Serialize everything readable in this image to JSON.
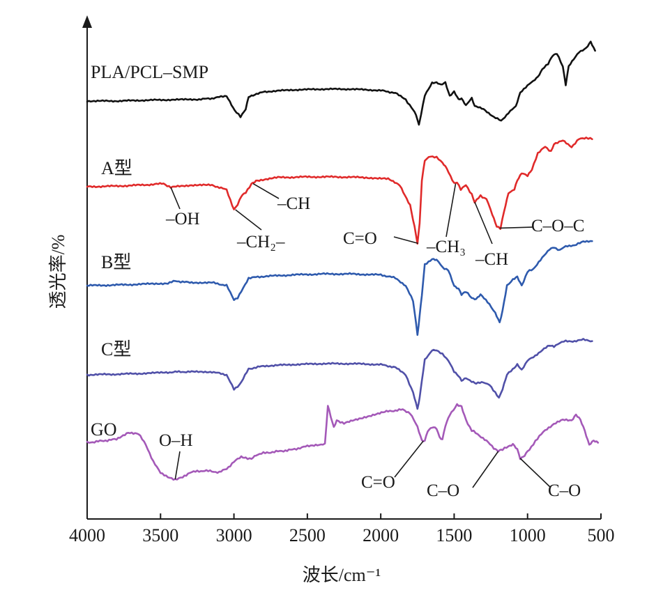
{
  "chart_data": {
    "type": "line",
    "xlabel": "波长/cm⁻¹",
    "ylabel": "透光率/%",
    "xlim": [
      4000,
      500
    ],
    "xticks": [
      4000,
      3500,
      3000,
      2500,
      2000,
      1500,
      1000,
      500
    ],
    "grid": false,
    "legend": "none",
    "series": [
      {
        "name": "PLA/PCL–SMP",
        "color": "#111111",
        "offset": 4,
        "points": [
          [
            4000,
            0
          ],
          [
            3800,
            0
          ],
          [
            3600,
            0.03
          ],
          [
            3400,
            0.05
          ],
          [
            3250,
            0.06
          ],
          [
            3150,
            0.1
          ],
          [
            3050,
            0.2
          ],
          [
            2995,
            -0.35
          ],
          [
            2955,
            -0.6
          ],
          [
            2920,
            -0.3
          ],
          [
            2900,
            0.15
          ],
          [
            2870,
            0.2
          ],
          [
            2800,
            0.35
          ],
          [
            2600,
            0.42
          ],
          [
            2400,
            0.45
          ],
          [
            2200,
            0.45
          ],
          [
            2000,
            0.4
          ],
          [
            1900,
            0.3
          ],
          [
            1830,
            0.05
          ],
          [
            1790,
            -0.25
          ],
          [
            1760,
            -0.5
          ],
          [
            1740,
            -0.9
          ],
          [
            1725,
            -0.5
          ],
          [
            1700,
            0.2
          ],
          [
            1650,
            0.7
          ],
          [
            1620,
            0.7
          ],
          [
            1590,
            0.6
          ],
          [
            1560,
            0.7
          ],
          [
            1530,
            0.2
          ],
          [
            1500,
            0.35
          ],
          [
            1470,
            0.05
          ],
          [
            1450,
            0.1
          ],
          [
            1420,
            -0.15
          ],
          [
            1380,
            0.1
          ],
          [
            1360,
            -0.2
          ],
          [
            1300,
            -0.3
          ],
          [
            1230,
            -0.6
          ],
          [
            1180,
            -0.75
          ],
          [
            1130,
            -0.45
          ],
          [
            1080,
            -0.2
          ],
          [
            1050,
            0.3
          ],
          [
            1000,
            0.6
          ],
          [
            960,
            0.75
          ],
          [
            930,
            0.9
          ],
          [
            900,
            1.2
          ],
          [
            860,
            1.4
          ],
          [
            830,
            1.7
          ],
          [
            800,
            1.8
          ],
          [
            760,
            1.3
          ],
          [
            740,
            0.6
          ],
          [
            720,
            1.3
          ],
          [
            650,
            1.85
          ],
          [
            600,
            2.0
          ],
          [
            570,
            2.25
          ],
          [
            540,
            1.9
          ]
        ]
      },
      {
        "name": "A型",
        "color": "#e02a2a",
        "offset": 3,
        "points": [
          [
            4000,
            0
          ],
          [
            3800,
            0.02
          ],
          [
            3600,
            0.06
          ],
          [
            3480,
            0.1
          ],
          [
            3430,
            -0.02
          ],
          [
            3300,
            0.05
          ],
          [
            3150,
            0.05
          ],
          [
            3050,
            -0.1
          ],
          [
            3000,
            -0.75
          ],
          [
            2975,
            -0.6
          ],
          [
            2950,
            -0.3
          ],
          [
            2920,
            -0.2
          ],
          [
            2880,
            0.1
          ],
          [
            2850,
            0.2
          ],
          [
            2700,
            0.3
          ],
          [
            2500,
            0.32
          ],
          [
            2300,
            0.32
          ],
          [
            2100,
            0.3
          ],
          [
            1950,
            0.25
          ],
          [
            1870,
            0.05
          ],
          [
            1800,
            -0.6
          ],
          [
            1770,
            -1.3
          ],
          [
            1750,
            -1.85
          ],
          [
            1735,
            -1.2
          ],
          [
            1720,
            0.2
          ],
          [
            1700,
            0.85
          ],
          [
            1660,
            1.0
          ],
          [
            1620,
            0.95
          ],
          [
            1580,
            0.8
          ],
          [
            1550,
            0.6
          ],
          [
            1500,
            0.1
          ],
          [
            1480,
            0.15
          ],
          [
            1455,
            -0.1
          ],
          [
            1420,
            0.05
          ],
          [
            1380,
            -0.25
          ],
          [
            1360,
            -0.5
          ],
          [
            1320,
            -0.3
          ],
          [
            1280,
            -0.4
          ],
          [
            1240,
            -0.9
          ],
          [
            1210,
            -1.3
          ],
          [
            1185,
            -1.35
          ],
          [
            1160,
            -0.8
          ],
          [
            1130,
            -0.2
          ],
          [
            1090,
            -0.1
          ],
          [
            1070,
            0.2
          ],
          [
            1040,
            0.45
          ],
          [
            1000,
            0.35
          ],
          [
            970,
            0.55
          ],
          [
            930,
            1.1
          ],
          [
            880,
            1.3
          ],
          [
            840,
            1.15
          ],
          [
            820,
            1.4
          ],
          [
            760,
            1.5
          ],
          [
            700,
            1.3
          ],
          [
            650,
            1.55
          ],
          [
            600,
            1.6
          ],
          [
            560,
            1.55
          ]
        ]
      },
      {
        "name": "B型",
        "color": "#2e5aad",
        "offset": 2,
        "points": [
          [
            4000,
            0
          ],
          [
            3800,
            0.02
          ],
          [
            3600,
            0.05
          ],
          [
            3450,
            0.08
          ],
          [
            3400,
            0.15
          ],
          [
            3300,
            0.1
          ],
          [
            3150,
            0.1
          ],
          [
            3050,
            0.0
          ],
          [
            3000,
            -0.45
          ],
          [
            2975,
            -0.4
          ],
          [
            2950,
            -0.2
          ],
          [
            2900,
            0.25
          ],
          [
            2800,
            0.3
          ],
          [
            2600,
            0.35
          ],
          [
            2400,
            0.38
          ],
          [
            2200,
            0.38
          ],
          [
            2000,
            0.35
          ],
          [
            1900,
            0.25
          ],
          [
            1830,
            0.0
          ],
          [
            1780,
            -0.5
          ],
          [
            1750,
            -1.6
          ],
          [
            1735,
            -1.0
          ],
          [
            1720,
            -0.3
          ],
          [
            1700,
            0.7
          ],
          [
            1650,
            0.85
          ],
          [
            1620,
            0.85
          ],
          [
            1580,
            0.6
          ],
          [
            1540,
            0.5
          ],
          [
            1500,
            0.0
          ],
          [
            1470,
            -0.1
          ],
          [
            1450,
            -0.3
          ],
          [
            1420,
            -0.2
          ],
          [
            1380,
            -0.4
          ],
          [
            1350,
            -0.45
          ],
          [
            1320,
            -0.3
          ],
          [
            1260,
            -0.6
          ],
          [
            1220,
            -0.9
          ],
          [
            1190,
            -1.2
          ],
          [
            1170,
            -0.8
          ],
          [
            1140,
            0.0
          ],
          [
            1100,
            0.2
          ],
          [
            1070,
            0.3
          ],
          [
            1040,
            0.0
          ],
          [
            1000,
            0.45
          ],
          [
            960,
            0.55
          ],
          [
            900,
            0.9
          ],
          [
            850,
            1.2
          ],
          [
            820,
            1.25
          ],
          [
            780,
            1.15
          ],
          [
            740,
            1.3
          ],
          [
            680,
            1.3
          ],
          [
            620,
            1.45
          ],
          [
            560,
            1.45
          ]
        ]
      },
      {
        "name": "C型",
        "color": "#5050a8",
        "offset": 1,
        "points": [
          [
            4000,
            0
          ],
          [
            3800,
            0.02
          ],
          [
            3600,
            0.05
          ],
          [
            3450,
            0.08
          ],
          [
            3400,
            0.1
          ],
          [
            3300,
            0.1
          ],
          [
            3150,
            0.1
          ],
          [
            3050,
            0.0
          ],
          [
            3000,
            -0.5
          ],
          [
            2975,
            -0.4
          ],
          [
            2950,
            -0.25
          ],
          [
            2900,
            0.2
          ],
          [
            2800,
            0.3
          ],
          [
            2600,
            0.35
          ],
          [
            2400,
            0.38
          ],
          [
            2200,
            0.38
          ],
          [
            2000,
            0.35
          ],
          [
            1900,
            0.25
          ],
          [
            1830,
            0.0
          ],
          [
            1780,
            -0.6
          ],
          [
            1750,
            -1.15
          ],
          [
            1735,
            -0.8
          ],
          [
            1720,
            -0.2
          ],
          [
            1700,
            0.5
          ],
          [
            1650,
            0.85
          ],
          [
            1620,
            0.85
          ],
          [
            1580,
            0.7
          ],
          [
            1540,
            0.5
          ],
          [
            1500,
            0.1
          ],
          [
            1470,
            -0.05
          ],
          [
            1450,
            -0.2
          ],
          [
            1420,
            -0.1
          ],
          [
            1380,
            -0.25
          ],
          [
            1350,
            -0.3
          ],
          [
            1300,
            -0.25
          ],
          [
            1260,
            -0.35
          ],
          [
            1220,
            -0.6
          ],
          [
            1195,
            -0.8
          ],
          [
            1170,
            -0.5
          ],
          [
            1140,
            0.0
          ],
          [
            1100,
            0.2
          ],
          [
            1070,
            0.35
          ],
          [
            1040,
            0.15
          ],
          [
            1000,
            0.5
          ],
          [
            960,
            0.6
          ],
          [
            900,
            0.85
          ],
          [
            850,
            1.0
          ],
          [
            820,
            0.95
          ],
          [
            780,
            1.1
          ],
          [
            740,
            1.15
          ],
          [
            680,
            1.15
          ],
          [
            620,
            1.2
          ],
          [
            560,
            1.15
          ]
        ]
      },
      {
        "name": "GO",
        "color": "#a459b8",
        "offset": 0,
        "points": [
          [
            4000,
            0.25
          ],
          [
            3900,
            0.3
          ],
          [
            3800,
            0.35
          ],
          [
            3720,
            0.55
          ],
          [
            3650,
            0.5
          ],
          [
            3600,
            0.2
          ],
          [
            3550,
            -0.3
          ],
          [
            3500,
            -0.6
          ],
          [
            3450,
            -0.75
          ],
          [
            3400,
            -0.8
          ],
          [
            3350,
            -0.75
          ],
          [
            3300,
            -0.6
          ],
          [
            3200,
            -0.55
          ],
          [
            3100,
            -0.6
          ],
          [
            3050,
            -0.5
          ],
          [
            3000,
            -0.3
          ],
          [
            2950,
            -0.15
          ],
          [
            2920,
            -0.2
          ],
          [
            2880,
            -0.2
          ],
          [
            2850,
            -0.1
          ],
          [
            2800,
            -0.05
          ],
          [
            2700,
            0.0
          ],
          [
            2600,
            0.05
          ],
          [
            2500,
            0.15
          ],
          [
            2420,
            0.2
          ],
          [
            2380,
            0.2
          ],
          [
            2360,
            1.3
          ],
          [
            2340,
            1.0
          ],
          [
            2320,
            0.7
          ],
          [
            2300,
            0.9
          ],
          [
            2250,
            0.8
          ],
          [
            2100,
            1.0
          ],
          [
            1950,
            1.15
          ],
          [
            1850,
            1.2
          ],
          [
            1800,
            1.1
          ],
          [
            1750,
            0.7
          ],
          [
            1720,
            0.3
          ],
          [
            1700,
            0.3
          ],
          [
            1680,
            0.6
          ],
          [
            1650,
            0.7
          ],
          [
            1620,
            0.65
          ],
          [
            1600,
            0.4
          ],
          [
            1580,
            0.35
          ],
          [
            1560,
            0.75
          ],
          [
            1530,
            1.05
          ],
          [
            1480,
            1.35
          ],
          [
            1450,
            1.3
          ],
          [
            1420,
            0.9
          ],
          [
            1380,
            0.6
          ],
          [
            1340,
            0.5
          ],
          [
            1280,
            0.3
          ],
          [
            1230,
            0.1
          ],
          [
            1200,
            0.0
          ],
          [
            1170,
            0.05
          ],
          [
            1130,
            0.15
          ],
          [
            1100,
            0.2
          ],
          [
            1070,
            0.05
          ],
          [
            1050,
            -0.2
          ],
          [
            1030,
            -0.15
          ],
          [
            1000,
            0.0
          ],
          [
            960,
            0.2
          ],
          [
            920,
            0.45
          ],
          [
            880,
            0.6
          ],
          [
            820,
            0.8
          ],
          [
            760,
            0.9
          ],
          [
            700,
            0.9
          ],
          [
            670,
            1.05
          ],
          [
            640,
            0.9
          ],
          [
            610,
            0.6
          ],
          [
            580,
            0.2
          ],
          [
            550,
            0.3
          ],
          [
            520,
            0.25
          ]
        ]
      }
    ],
    "annotations": [
      {
        "id": "oh",
        "text": "–OH",
        "x": 3430,
        "series": 1
      },
      {
        "id": "ch2",
        "text": "–CH₂–",
        "x": 2990,
        "series": 1
      },
      {
        "id": "ch-a",
        "text": "–CH",
        "x": 2870,
        "series": 1
      },
      {
        "id": "co-a",
        "text": "C=O",
        "x": 1745,
        "series": 1
      },
      {
        "id": "ch3",
        "text": "–CH₃",
        "x": 1490,
        "series": 1
      },
      {
        "id": "ch-b",
        "text": "–CH",
        "x": 1360,
        "series": 1
      },
      {
        "id": "coc",
        "text": "C–O–C",
        "x": 1190,
        "series": 1
      },
      {
        "id": "oh-go",
        "text": "O–H",
        "x": 3400,
        "series": 4
      },
      {
        "id": "co-go",
        "text": "C=O",
        "x": 1710,
        "series": 4
      },
      {
        "id": "c-o-1",
        "text": "C–O",
        "x": 1200,
        "series": 4
      },
      {
        "id": "c-o-2",
        "text": "C–O",
        "x": 1050,
        "series": 4
      }
    ]
  }
}
